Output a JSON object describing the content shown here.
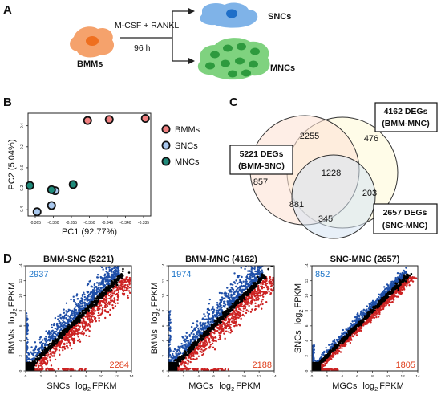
{
  "panel_a": {
    "letter": "A",
    "bmm_label": "BMMs",
    "treatment": "M-CSF + RANKL",
    "duration": "96 h",
    "snc_label": "SNCs",
    "mnc_label": "MNCs",
    "colors": {
      "bmm_cell": "#f5a26c",
      "bmm_nucleus": "#ef6f1f",
      "snc_cell": "#7fb3e8",
      "snc_nucleus": "#1f6fc8",
      "mnc_cell": "#7fd27f",
      "mnc_nucleus": "#2e9a3e"
    }
  },
  "panel_b": {
    "letter": "B",
    "legend": [
      "BMMs",
      "SNCs",
      "MNCs"
    ],
    "colors": {
      "BMMs": "#f08080",
      "SNCs": "#a9c8ee",
      "MNCs": "#1f8a7a"
    }
  },
  "panel_c": {
    "letter": "C",
    "sets": [
      {
        "line1": "4162 DEGs",
        "line2": "(BMM-MNC)"
      },
      {
        "line1": "5221 DEGs",
        "line2": "(BMM-SNC)"
      },
      {
        "line1": "2657 DEGs",
        "line2": "(SNC-MNC)"
      }
    ],
    "regions": [
      "2255",
      "476",
      "857",
      "1228",
      "203",
      "881",
      "345"
    ],
    "colors": {
      "bmm_mnc": "#fffbe0",
      "bmm_snc": "#fde3d6",
      "snc_mnc": "#d6e3f3"
    }
  },
  "panel_d": {
    "letter": "D",
    "plots": [
      {
        "title": "BMM-SNC (5221)",
        "x_label": "SNCs",
        "y_label": "BMMs",
        "unit": "log2 FPKM",
        "up": "2937",
        "down": "2284",
        "spread": 1.0
      },
      {
        "title": "BMM-MNC (4162)",
        "x_label": "MGCs",
        "y_label": "BMMs",
        "unit": "log2 FPKM",
        "up": "1974",
        "down": "2188",
        "spread": 1.0
      },
      {
        "title": "SNC-MNC (2657)",
        "x_label": "MGCs",
        "y_label": "SNCs",
        "unit": "log2 FPKM",
        "up": "852",
        "down": "1805",
        "spread": 0.35
      }
    ],
    "colors": {
      "up": "#1f4fa8",
      "down": "#cc2222",
      "neutral": "#000000",
      "up_text": "#1a73c8",
      "down_text": "#e0401e"
    }
  },
  "chart_data": [
    {
      "type": "scatter",
      "title": "",
      "xlabel": "PC1 (92.77%)",
      "ylabel": "PC2 (5.04%)",
      "xlim": [
        -0.367,
        -0.333
      ],
      "ylim": [
        -0.46,
        0.52
      ],
      "x_ticks": [
        "-0.365",
        "-0.360",
        "-0.355",
        "-0.350",
        "-0.345",
        "-0.340",
        "-0.335"
      ],
      "y_ticks": [
        "0.4",
        "0.2",
        "0.0",
        "-0.2",
        "-0.4"
      ],
      "legend_position": "right",
      "series": [
        {
          "name": "BMMs",
          "points": [
            [
              -0.3505,
              0.45
            ],
            [
              -0.3445,
              0.46
            ],
            [
              -0.3345,
              0.47
            ]
          ]
        },
        {
          "name": "SNCs",
          "points": [
            [
              -0.3645,
              -0.42
            ],
            [
              -0.3605,
              -0.36
            ],
            [
              -0.3595,
              -0.22
            ]
          ]
        },
        {
          "name": "MNCs",
          "points": [
            [
              -0.3665,
              -0.17
            ],
            [
              -0.3605,
              -0.21
            ],
            [
              -0.3545,
              -0.16
            ]
          ]
        }
      ]
    },
    {
      "type": "scatter",
      "title": "BMM-SNC (5221)",
      "xlabel": "SNCs log2 FPKM",
      "ylabel": "BMMs log2 FPKM",
      "xlim": [
        0,
        14
      ],
      "ylim": [
        0,
        14
      ],
      "x_ticks": [
        "0",
        "2",
        "4",
        "6",
        "8",
        "10",
        "12",
        "14"
      ],
      "y_ticks": [
        "0",
        "2",
        "4",
        "6",
        "8",
        "10",
        "12",
        "14"
      ],
      "series": [
        {
          "name": "up",
          "count": 2937
        },
        {
          "name": "down",
          "count": 2284
        }
      ]
    },
    {
      "type": "scatter",
      "title": "BMM-MNC (4162)",
      "xlabel": "MGCs log2 FPKM",
      "ylabel": "BMMs log2 FPKM",
      "xlim": [
        0,
        14
      ],
      "ylim": [
        0,
        14
      ],
      "x_ticks": [
        "0",
        "2",
        "4",
        "6",
        "8",
        "10",
        "12",
        "14"
      ],
      "y_ticks": [
        "0",
        "2",
        "4",
        "6",
        "8",
        "10",
        "12",
        "14"
      ],
      "series": [
        {
          "name": "up",
          "count": 1974
        },
        {
          "name": "down",
          "count": 2188
        }
      ]
    },
    {
      "type": "scatter",
      "title": "SNC-MNC (2657)",
      "xlabel": "MGCs log2 FPKM",
      "ylabel": "SNCs log2 FPKM",
      "xlim": [
        0,
        14
      ],
      "ylim": [
        0,
        14
      ],
      "x_ticks": [
        "0",
        "2",
        "4",
        "6",
        "8",
        "10",
        "12",
        "14"
      ],
      "y_ticks": [
        "0",
        "2",
        "4",
        "6",
        "8",
        "10",
        "12",
        "14"
      ],
      "series": [
        {
          "name": "up",
          "count": 852
        },
        {
          "name": "down",
          "count": 1805
        }
      ]
    }
  ]
}
